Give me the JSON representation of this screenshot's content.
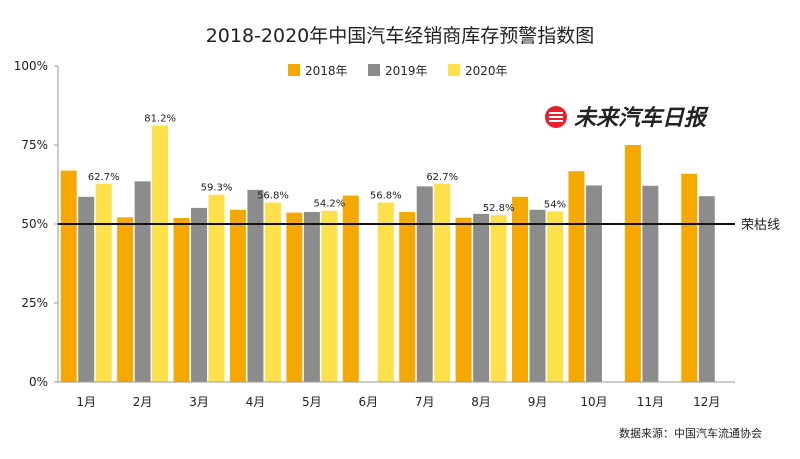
{
  "chart_data": {
    "type": "bar",
    "title": "2018-2020年中国汽车经销商库存预警指数图",
    "categories": [
      "1月",
      "2月",
      "3月",
      "4月",
      "5月",
      "6月",
      "7月",
      "8月",
      "9月",
      "10月",
      "11月",
      "12月"
    ],
    "series": [
      {
        "name": "2018年",
        "color": "#f5a800",
        "values": [
          66.9,
          52.1,
          51.9,
          54.5,
          53.6,
          59.0,
          53.8,
          52.0,
          58.6,
          66.7,
          75.0,
          65.9
        ]
      },
      {
        "name": "2019年",
        "color": "#8c8c8c",
        "values": [
          58.6,
          63.5,
          55.1,
          60.8,
          53.8,
          null,
          61.9,
          53.2,
          54.5,
          62.2,
          62.1,
          58.8
        ]
      },
      {
        "name": "2020年",
        "color": "#fde04a",
        "values": [
          62.7,
          81.2,
          59.3,
          56.8,
          54.2,
          56.8,
          62.7,
          52.8,
          54.0,
          null,
          null,
          null
        ],
        "labels": [
          "62.7%",
          "81.2%",
          "59.3%",
          "56.8%",
          "54.2%",
          "56.8%",
          "62.7%",
          "52.8%",
          "54%",
          "",
          "",
          ""
        ]
      }
    ],
    "y_ticks": [
      "0%",
      "25%",
      "50%",
      "75%",
      "100%"
    ],
    "ylim": [
      0,
      100
    ],
    "threshold": {
      "value": 50,
      "label": "荣枯线"
    },
    "legend": "top-center",
    "grid": false
  },
  "brand": {
    "text": "未来汽车日报",
    "icon": "brand-logo-icon",
    "color": "#e8202a"
  },
  "source": "数据来源：中国汽车流通协会"
}
